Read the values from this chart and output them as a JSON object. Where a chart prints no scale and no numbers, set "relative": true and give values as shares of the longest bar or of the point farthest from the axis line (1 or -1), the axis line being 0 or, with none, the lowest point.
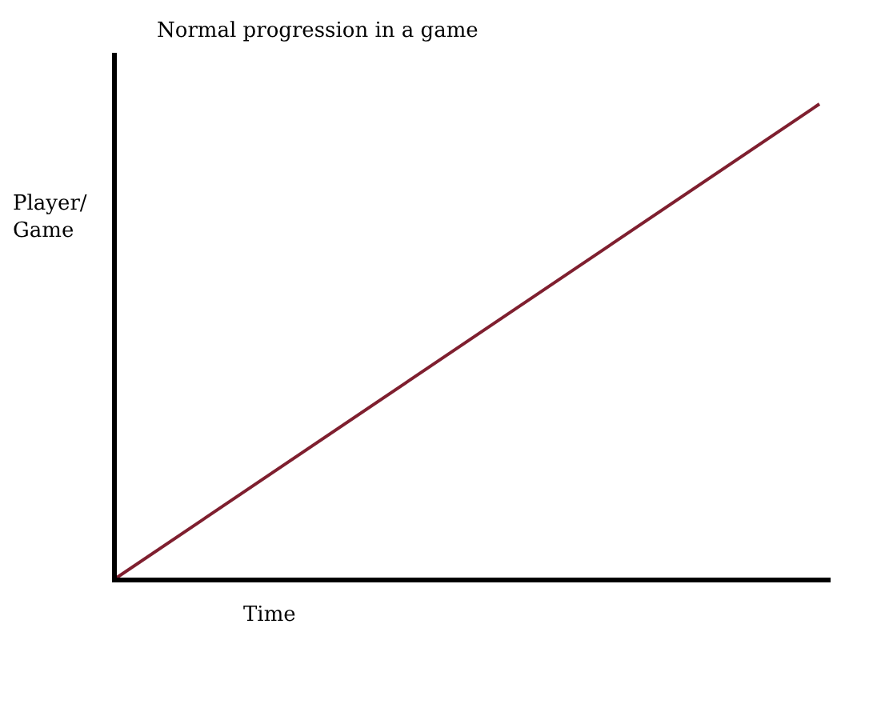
{
  "chart_data": {
    "type": "line",
    "title": "Normal progression in a game",
    "xlabel": "Time",
    "ylabel": "Player/\nGame",
    "categories": [
      null,
      null
    ],
    "relative": true,
    "series": [
      {
        "color": "#7f1f2f",
        "values": [
          0,
          1
        ]
      }
    ],
    "marker": "none",
    "line_style": "solid"
  }
}
